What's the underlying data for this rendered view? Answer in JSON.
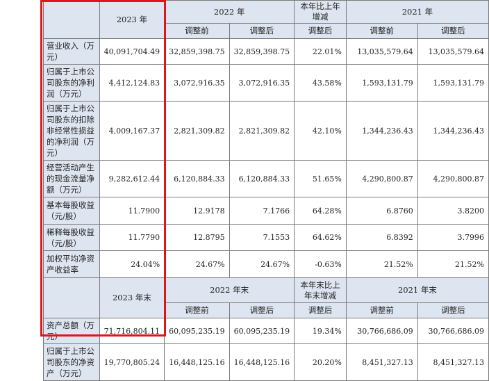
{
  "header": {
    "y2023": "2023 年",
    "y2022": "2022 年",
    "yoy": "本年比上年增减",
    "y2021": "2021 年",
    "before": "调整前",
    "after": "调整后",
    "after_yoy": "调整后"
  },
  "rows": [
    {
      "label": "营业收入（万元）",
      "v2023": "40,091,704.49",
      "v2022_before": "32,859,398.75",
      "v2022_after": "32,859,398.75",
      "yoy": "22.01%",
      "v2021_before": "13,035,579.64",
      "v2021_after": "13,035,579.64"
    },
    {
      "label": "归属于上市公司股东的净利润（万元）",
      "v2023": "4,412,124.83",
      "v2022_before": "3,072,916.35",
      "v2022_after": "3,072,916.35",
      "yoy": "43.58%",
      "v2021_before": "1,593,131.79",
      "v2021_after": "1,593,131.79"
    },
    {
      "label": "归属于上市公司股东的扣除非经常性损益的净利润（万元）",
      "v2023": "4,009,167.37",
      "v2022_before": "2,821,309.82",
      "v2022_after": "2,821,309.82",
      "yoy": "42.10%",
      "v2021_before": "1,344,236.43",
      "v2021_after": "1,344,236.43"
    },
    {
      "label": "经营活动产生的现金流量净额（万元）",
      "v2023": "9,282,612.44",
      "v2022_before": "6,120,884.33",
      "v2022_after": "6,120,884.33",
      "yoy": "51.65%",
      "v2021_before": "4,290,800.87",
      "v2021_after": "4,290,800.87"
    },
    {
      "label": "基本每股收益（元/股）",
      "v2023": "11.7900",
      "v2022_before": "12.9178",
      "v2022_after": "7.1766",
      "yoy": "64.28%",
      "v2021_before": "6.8760",
      "v2021_after": "3.8200"
    },
    {
      "label": "稀释每股收益（元/股）",
      "v2023": "11.7790",
      "v2022_before": "12.8795",
      "v2022_after": "7.1553",
      "yoy": "64.62%",
      "v2021_before": "6.8392",
      "v2021_after": "3.7996"
    },
    {
      "label": "加权平均净资产收益率",
      "v2023": "24.04%",
      "v2022_before": "24.67%",
      "v2022_after": "24.67%",
      "yoy": "-0.63%",
      "v2021_before": "21.52%",
      "v2021_after": "21.52%"
    }
  ],
  "header2": {
    "y2023": "2023 年末",
    "y2022": "2022 年末",
    "yoy": "本年末比上年末增减",
    "y2021": "2021 年末",
    "before": "调整前",
    "after": "调整后",
    "after_yoy": "调整后"
  },
  "rows2": [
    {
      "label": "资产总额（万元）",
      "v2023": "71,716,804.11",
      "v2022_before": "60,095,235.19",
      "v2022_after": "60,095,235.19",
      "yoy": "19.34%",
      "v2021_before": "30,766,686.09",
      "v2021_after": "30,766,686.09"
    },
    {
      "label": "归属于上市公司股东的净资产（万元）",
      "v2023": "19,770,805.24",
      "v2022_before": "16,448,125.16",
      "v2022_after": "16,448,125.16",
      "yoy": "20.20%",
      "v2021_before": "8,451,327.13",
      "v2021_after": "8,451,327.13"
    }
  ],
  "colors": {
    "header_bg": "#dde5f1",
    "highlight": "#e0151b",
    "border": "#7a7a7a"
  }
}
